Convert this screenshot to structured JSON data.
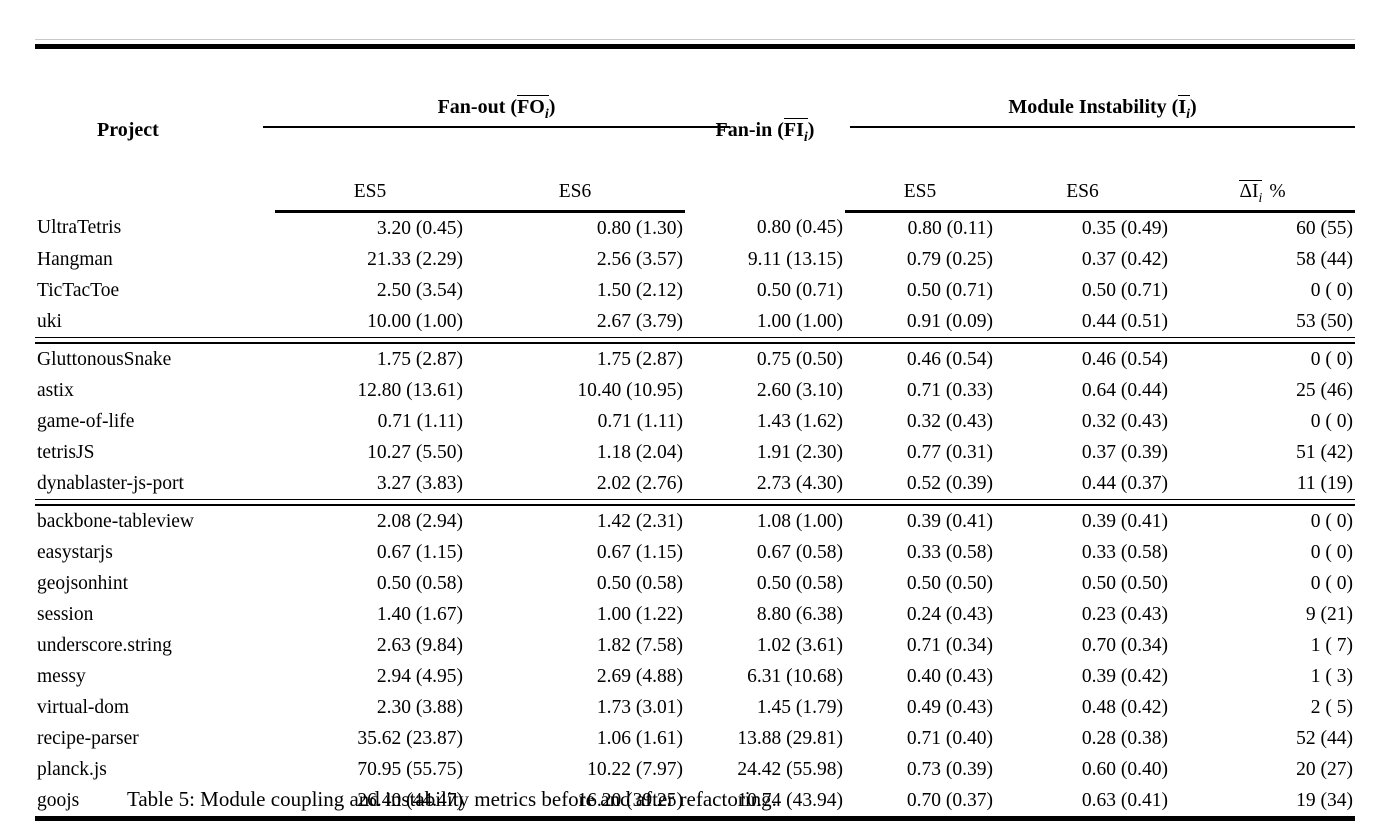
{
  "table": {
    "caption": "Table 5: Module coupling and instability metrics before and after refactoring.",
    "header": {
      "project": "Project",
      "fanout_label": "Fan-out",
      "fanout_symbol": "FO",
      "fanin_label": "Fan-in",
      "fanin_symbol": "FI",
      "instability_label": "Module Instability",
      "instability_symbol": "I",
      "delta_symbol": "ΔI",
      "sub_index": "i",
      "percent": "%",
      "paren_open": "(",
      "paren_close": ")",
      "es5": "ES5",
      "es6": "ES6"
    },
    "columns": [
      "project",
      "fo_es5",
      "fo_es6",
      "fi",
      "i_es5",
      "i_es6",
      "delta"
    ],
    "groups": [
      {
        "rows": [
          {
            "project": "UltraTetris",
            "fo_es5": "3.20 (0.45)",
            "fo_es6": "0.80 (1.30)",
            "fi": "0.80 (0.45)",
            "i_es5": "0.80 (0.11)",
            "i_es6": "0.35 (0.49)",
            "delta": "60 (55)"
          },
          {
            "project": "Hangman",
            "fo_es5": "21.33 (2.29)",
            "fo_es6": "2.56 (3.57)",
            "fi": "9.11 (13.15)",
            "i_es5": "0.79 (0.25)",
            "i_es6": "0.37 (0.42)",
            "delta": "58 (44)"
          },
          {
            "project": "TicTacToe",
            "fo_es5": "2.50 (3.54)",
            "fo_es6": "1.50 (2.12)",
            "fi": "0.50 (0.71)",
            "i_es5": "0.50 (0.71)",
            "i_es6": "0.50 (0.71)",
            "delta": "0 ( 0)"
          },
          {
            "project": "uki",
            "fo_es5": "10.00 (1.00)",
            "fo_es6": "2.67 (3.79)",
            "fi": "1.00 (1.00)",
            "i_es5": "0.91 (0.09)",
            "i_es6": "0.44 (0.51)",
            "delta": "53 (50)"
          }
        ]
      },
      {
        "rows": [
          {
            "project": "GluttonousSnake",
            "fo_es5": "1.75 (2.87)",
            "fo_es6": "1.75 (2.87)",
            "fi": "0.75 (0.50)",
            "i_es5": "0.46 (0.54)",
            "i_es6": "0.46 (0.54)",
            "delta": "0 ( 0)"
          },
          {
            "project": "astix",
            "fo_es5": "12.80 (13.61)",
            "fo_es6": "10.40 (10.95)",
            "fi": "2.60 (3.10)",
            "i_es5": "0.71 (0.33)",
            "i_es6": "0.64 (0.44)",
            "delta": "25 (46)"
          },
          {
            "project": "game-of-life",
            "fo_es5": "0.71 (1.11)",
            "fo_es6": "0.71 (1.11)",
            "fi": "1.43 (1.62)",
            "i_es5": "0.32 (0.43)",
            "i_es6": "0.32 (0.43)",
            "delta": "0 ( 0)"
          },
          {
            "project": "tetrisJS",
            "fo_es5": "10.27 (5.50)",
            "fo_es6": "1.18 (2.04)",
            "fi": "1.91 (2.30)",
            "i_es5": "0.77 (0.31)",
            "i_es6": "0.37 (0.39)",
            "delta": "51 (42)"
          },
          {
            "project": "dynablaster-js-port",
            "fo_es5": "3.27 (3.83)",
            "fo_es6": "2.02 (2.76)",
            "fi": "2.73 (4.30)",
            "i_es5": "0.52 (0.39)",
            "i_es6": "0.44 (0.37)",
            "delta": "11 (19)"
          }
        ]
      },
      {
        "rows": [
          {
            "project": "backbone-tableview",
            "fo_es5": "2.08 (2.94)",
            "fo_es6": "1.42 (2.31)",
            "fi": "1.08 (1.00)",
            "i_es5": "0.39 (0.41)",
            "i_es6": "0.39 (0.41)",
            "delta": "0 ( 0)"
          },
          {
            "project": "easystarjs",
            "fo_es5": "0.67 (1.15)",
            "fo_es6": "0.67 (1.15)",
            "fi": "0.67 (0.58)",
            "i_es5": "0.33 (0.58)",
            "i_es6": "0.33 (0.58)",
            "delta": "0 ( 0)"
          },
          {
            "project": "geojsonhint",
            "fo_es5": "0.50 (0.58)",
            "fo_es6": "0.50 (0.58)",
            "fi": "0.50 (0.58)",
            "i_es5": "0.50 (0.50)",
            "i_es6": "0.50 (0.50)",
            "delta": "0 ( 0)"
          },
          {
            "project": "session",
            "fo_es5": "1.40 (1.67)",
            "fo_es6": "1.00 (1.22)",
            "fi": "8.80 (6.38)",
            "i_es5": "0.24 (0.43)",
            "i_es6": "0.23 (0.43)",
            "delta": "9 (21)"
          },
          {
            "project": "underscore.string",
            "fo_es5": "2.63 (9.84)",
            "fo_es6": "1.82 (7.58)",
            "fi": "1.02 (3.61)",
            "i_es5": "0.71 (0.34)",
            "i_es6": "0.70 (0.34)",
            "delta": "1 ( 7)"
          },
          {
            "project": "messy",
            "fo_es5": "2.94 (4.95)",
            "fo_es6": "2.69 (4.88)",
            "fi": "6.31 (10.68)",
            "i_es5": "0.40 (0.43)",
            "i_es6": "0.39 (0.42)",
            "delta": "1 ( 3)"
          },
          {
            "project": "virtual-dom",
            "fo_es5": "2.30 (3.88)",
            "fo_es6": "1.73 (3.01)",
            "fi": "1.45 (1.79)",
            "i_es5": "0.49 (0.43)",
            "i_es6": "0.48 (0.42)",
            "delta": "2 ( 5)"
          },
          {
            "project": "recipe-parser",
            "fo_es5": "35.62 (23.87)",
            "fo_es6": "1.06 (1.61)",
            "fi": "13.88 (29.81)",
            "i_es5": "0.71 (0.40)",
            "i_es6": "0.28 (0.38)",
            "delta": "52 (44)"
          },
          {
            "project": "planck.js",
            "fo_es5": "70.95 (55.75)",
            "fo_es6": "10.22 (7.97)",
            "fi": "24.42 (55.98)",
            "i_es5": "0.73 (0.39)",
            "i_es6": "0.60 (0.40)",
            "delta": "20 (27)"
          },
          {
            "project": "goojs",
            "fo_es5": "26.40 (44.47)",
            "fo_es6": "16.20 (39.25)",
            "fi": "10.74 (43.94)",
            "i_es5": "0.70 (0.37)",
            "i_es6": "0.63 (0.41)",
            "delta": "19 (34)"
          }
        ]
      }
    ]
  }
}
